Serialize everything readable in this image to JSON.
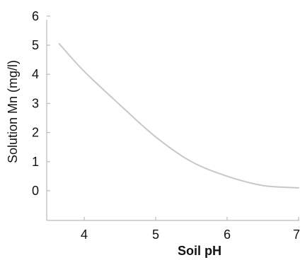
{
  "chart_data": {
    "type": "line",
    "xlabel": "Soil pH",
    "ylabel": "Solution Mn (mg/l)",
    "xlim": [
      3.5,
      7.0
    ],
    "ylim": [
      -1.0,
      6.0
    ],
    "x_ticks": [
      "4",
      "5",
      "6",
      "7"
    ],
    "y_ticks": [
      "0",
      "1",
      "2",
      "3",
      "4",
      "5",
      "6"
    ],
    "grid": false,
    "legend": "none",
    "series": [
      {
        "color": "#c8c8c8",
        "x": [
          3.65,
          4.0,
          4.5,
          5.0,
          5.5,
          6.0,
          6.5,
          7.0
        ],
        "y": [
          5.05,
          4.1,
          2.95,
          1.85,
          1.0,
          0.5,
          0.18,
          0.1
        ]
      }
    ]
  }
}
